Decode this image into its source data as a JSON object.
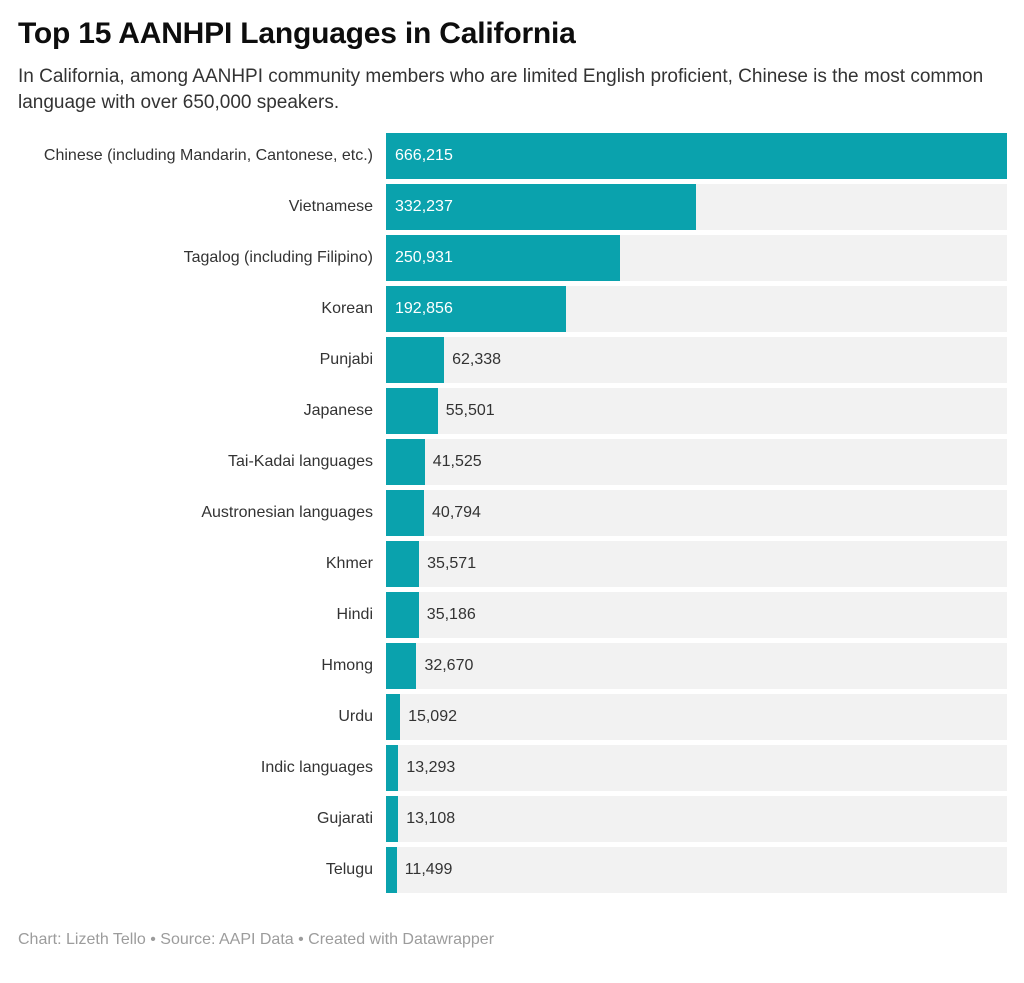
{
  "header": {
    "title": "Top 15 AANHPI Languages in California",
    "subtitle": "In California, among AANHPI community members who are limited English proficient, Chinese is the most common language with over 650,000 speakers."
  },
  "chart_data": {
    "type": "bar",
    "orientation": "horizontal",
    "title": "Top 15 AANHPI Languages in California",
    "xlabel": "",
    "ylabel": "",
    "xlim": [
      0,
      666215
    ],
    "grid": false,
    "legend": false,
    "categories": [
      "Chinese (including Mandarin, Cantonese, etc.)",
      "Vietnamese",
      "Tagalog (including Filipino)",
      "Korean",
      "Punjabi",
      "Japanese",
      "Tai-Kadai languages",
      "Austronesian languages",
      "Khmer",
      "Hindi",
      "Hmong",
      "Urdu",
      "Indic languages",
      "Gujarati",
      "Telugu"
    ],
    "values": [
      666215,
      332237,
      250931,
      192856,
      62338,
      55501,
      41525,
      40794,
      35571,
      35186,
      32670,
      15092,
      13293,
      13108,
      11499
    ],
    "value_labels": [
      "666,215",
      "332,237",
      "250,931",
      "192,856",
      "62,338",
      "55,501",
      "41,525",
      "40,794",
      "35,571",
      "35,186",
      "32,670",
      "15,092",
      "13,293",
      "13,108",
      "11,499"
    ],
    "bar_color": "#0aa2ad",
    "track_color": "#f2f2f2",
    "inside_value_color": "#ffffff",
    "outside_value_color": "#333333"
  },
  "footer": {
    "credit": "Chart: Lizeth Tello • Source: AAPI Data • Created with Datawrapper"
  }
}
